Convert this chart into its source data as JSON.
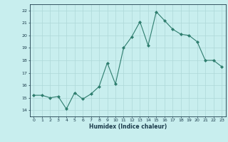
{
  "x": [
    0,
    1,
    2,
    3,
    4,
    5,
    6,
    7,
    8,
    9,
    10,
    11,
    12,
    13,
    14,
    15,
    16,
    17,
    18,
    19,
    20,
    21,
    22,
    23
  ],
  "y": [
    15.2,
    15.2,
    15.0,
    15.1,
    14.1,
    15.4,
    14.9,
    15.3,
    15.9,
    17.8,
    16.1,
    19.0,
    19.9,
    21.1,
    19.2,
    21.9,
    21.2,
    20.5,
    20.1,
    20.0,
    19.5,
    18.0,
    18.0,
    17.5
  ],
  "title": "",
  "xlabel": "Humidex (Indice chaleur)",
  "ylabel": "",
  "ylim": [
    13.5,
    22.5
  ],
  "xlim": [
    -0.5,
    23.5
  ],
  "yticks": [
    14,
    15,
    16,
    17,
    18,
    19,
    20,
    21,
    22
  ],
  "xticks": [
    0,
    1,
    2,
    3,
    4,
    5,
    6,
    7,
    8,
    9,
    10,
    11,
    12,
    13,
    14,
    15,
    16,
    17,
    18,
    19,
    20,
    21,
    22,
    23
  ],
  "line_color": "#2e7d6e",
  "marker_color": "#2e7d6e",
  "bg_color": "#c8eeee",
  "grid_color": "#aed8d8",
  "label_color": "#1a3a4a",
  "tick_color": "#1a3a4a"
}
